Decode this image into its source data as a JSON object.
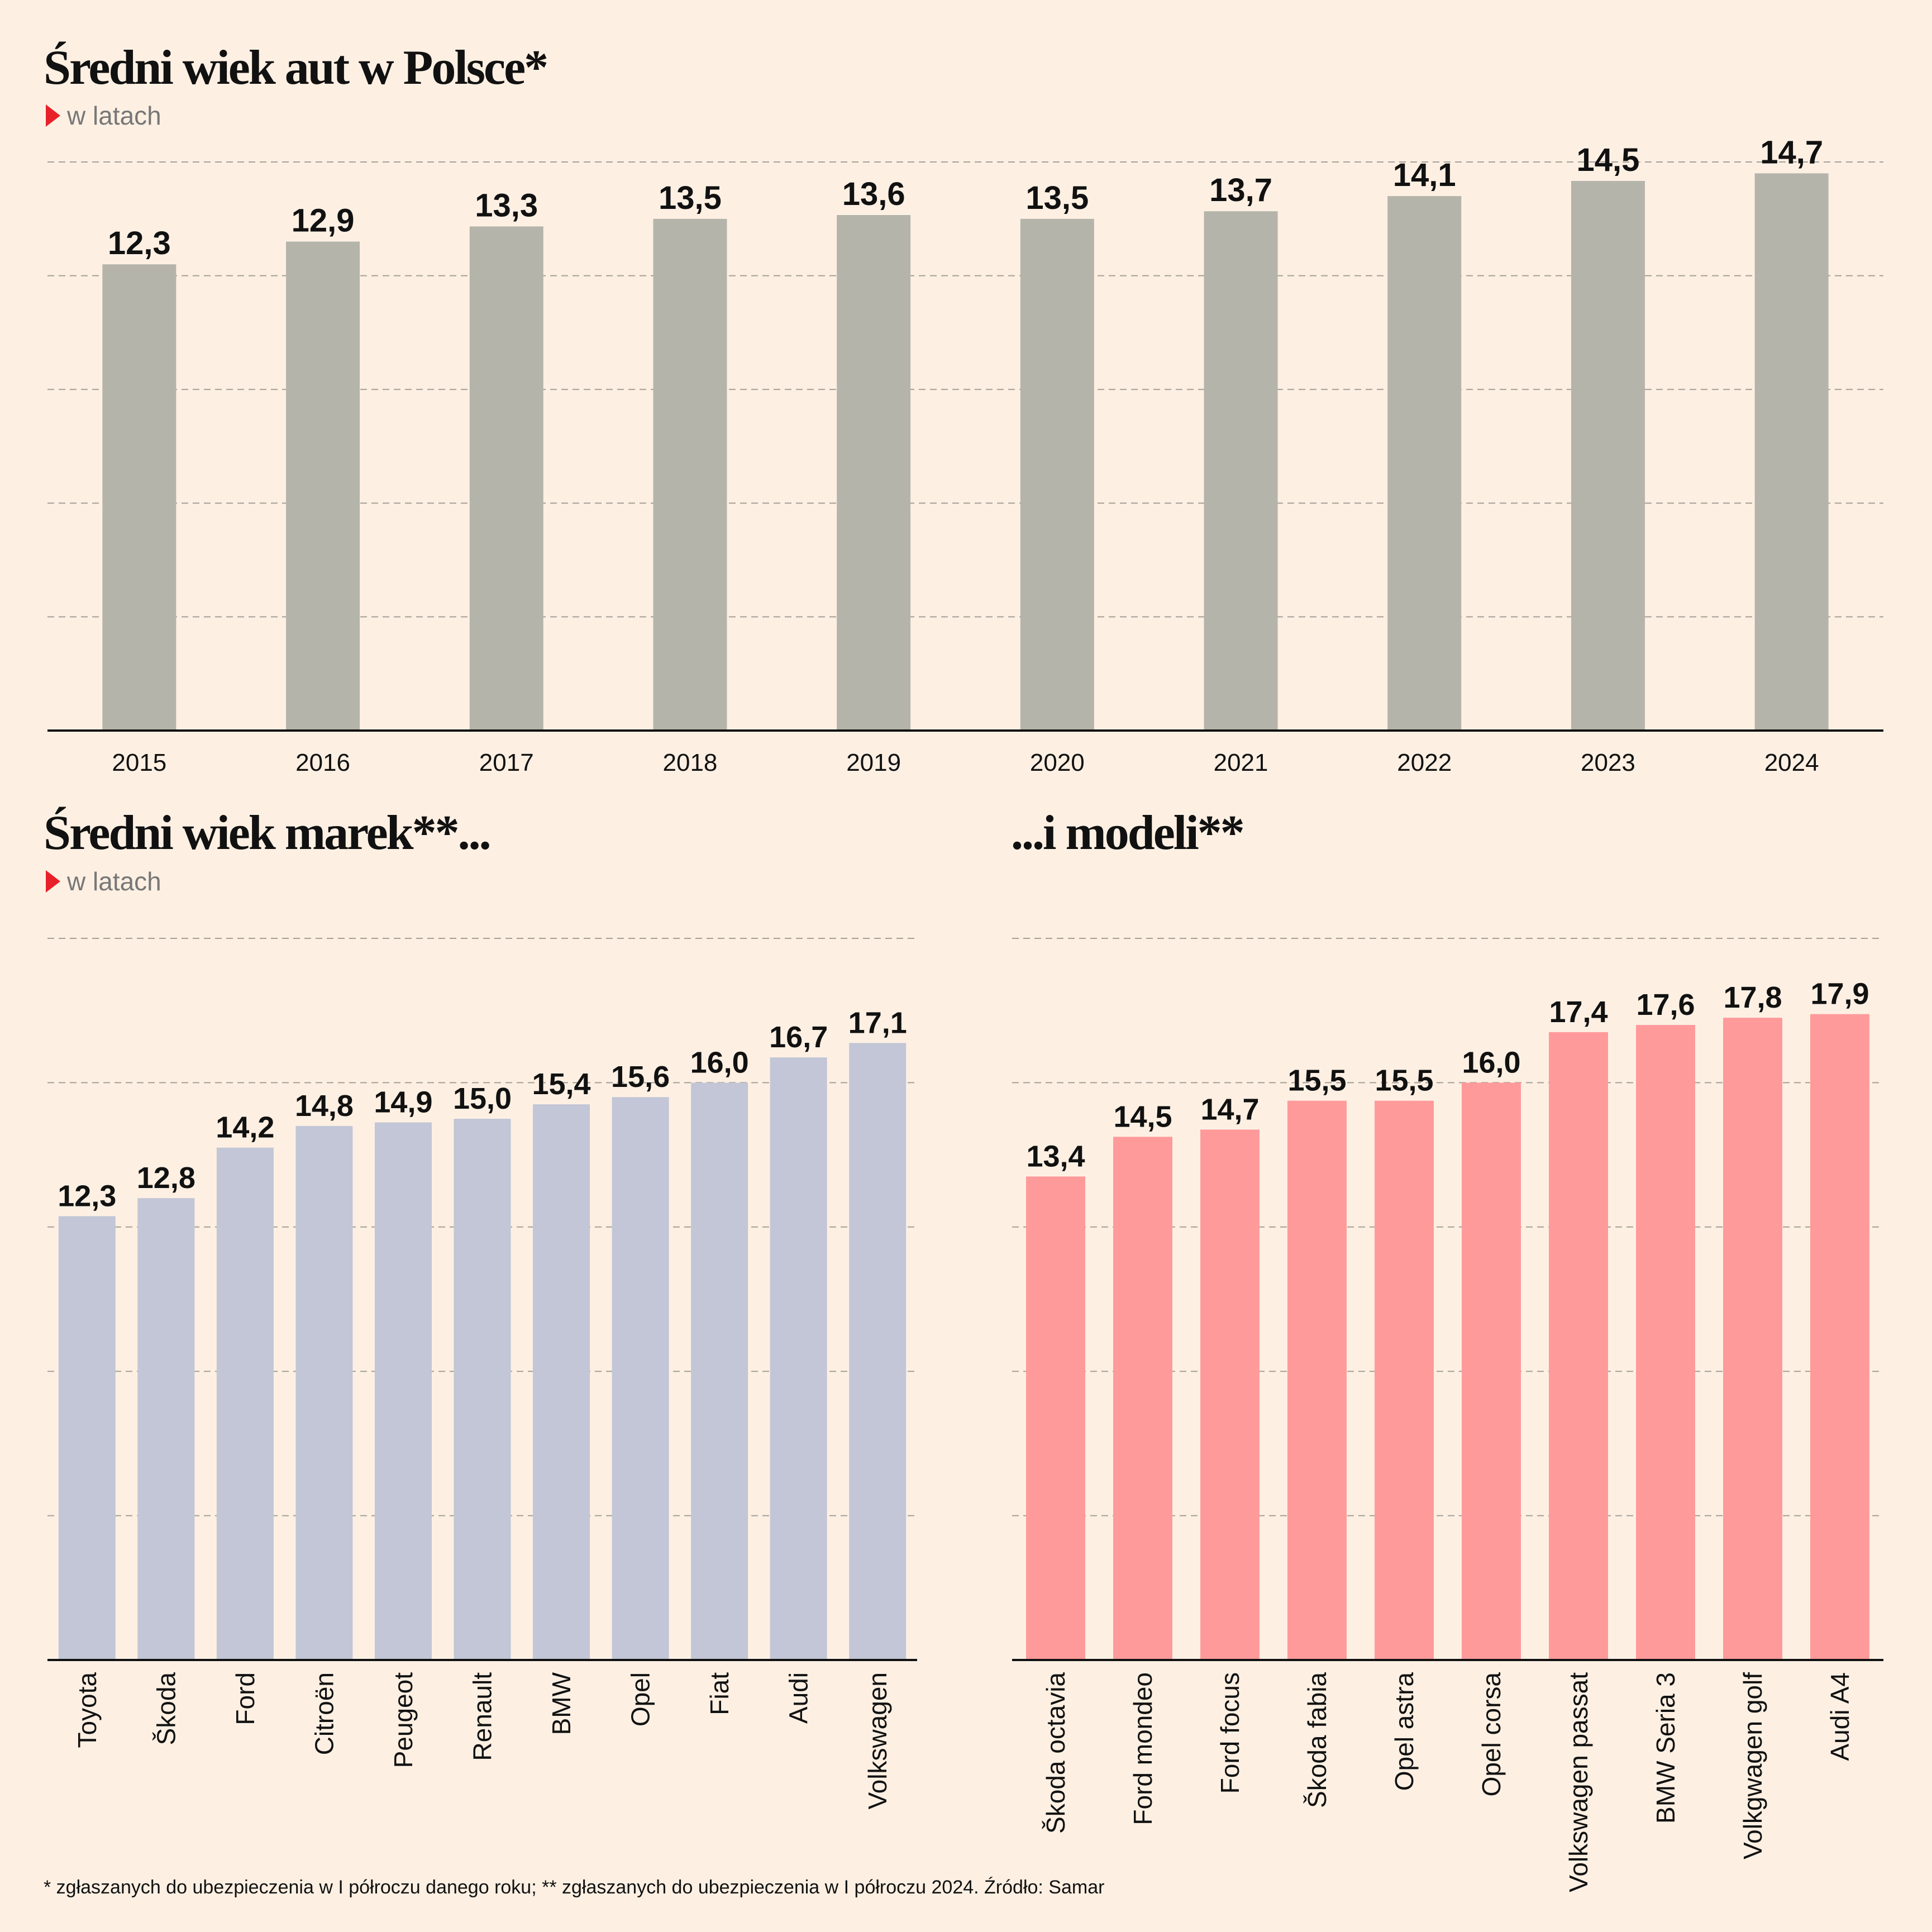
{
  "charts": {
    "years": {
      "title": "Średni wiek aut w Polsce*",
      "subtitle": "w latach"
    },
    "brands": {
      "title": "Średni wiek marek**...",
      "subtitle": "w latach"
    },
    "models": {
      "title": "...i modeli**"
    }
  },
  "footnote": "* zgłaszanych do ubezpieczenia w I półroczu danego roku; ** zgłaszanych do ubezpieczenia w I półroczu 2024. Źródło: Samar",
  "colors": {
    "years_bar": "#b4b4aa",
    "brands_bar": "#c2c6d6",
    "models_bar": "#ff9a9b",
    "accent": "#e8202a",
    "background": "#fdf0e3"
  },
  "chart_data": [
    {
      "type": "bar",
      "title": "Średni wiek aut w Polsce*",
      "subtitle": "w latach",
      "categories": [
        "2015",
        "2016",
        "2017",
        "2018",
        "2019",
        "2020",
        "2021",
        "2022",
        "2023",
        "2024"
      ],
      "values": [
        12.3,
        12.9,
        13.3,
        13.5,
        13.6,
        13.5,
        13.7,
        14.1,
        14.5,
        14.7
      ],
      "labels": [
        "12,3",
        "12,9",
        "13,3",
        "13,5",
        "13,6",
        "13,5",
        "13,7",
        "14,1",
        "14,5",
        "14,7"
      ],
      "ylim": [
        0,
        15
      ],
      "grid": true
    },
    {
      "type": "bar",
      "title": "Średni wiek marek**...",
      "subtitle": "w latach",
      "categories": [
        "Toyota",
        "Škoda",
        "Ford",
        "Citroën",
        "Peugeot",
        "Renault",
        "BMW",
        "Opel",
        "Fiat",
        "Audi",
        "Volkswagen"
      ],
      "values": [
        12.3,
        12.8,
        14.2,
        14.8,
        14.9,
        15.0,
        15.4,
        15.6,
        16.0,
        16.7,
        17.1
      ],
      "labels": [
        "12,3",
        "12,8",
        "14,2",
        "14,8",
        "14,9",
        "15,0",
        "15,4",
        "15,6",
        "16,0",
        "16,7",
        "17,1"
      ],
      "ylim": [
        0,
        20
      ],
      "grid": true
    },
    {
      "type": "bar",
      "title": "...i modeli**",
      "categories": [
        "Škoda octavia",
        "Ford mondeo",
        "Ford focus",
        "Škoda fabia",
        "Opel astra",
        "Opel corsa",
        "Volkswagen passat",
        "BMW Seria 3",
        "Volkgwagen golf",
        "Audi A4"
      ],
      "values": [
        13.4,
        14.5,
        14.7,
        15.5,
        15.5,
        16.0,
        17.4,
        17.6,
        17.8,
        17.9
      ],
      "labels": [
        "13,4",
        "14,5",
        "14,7",
        "15,5",
        "15,5",
        "16,0",
        "17,4",
        "17,6",
        "17,8",
        "17,9"
      ],
      "ylim": [
        0,
        20
      ],
      "grid": true
    }
  ]
}
